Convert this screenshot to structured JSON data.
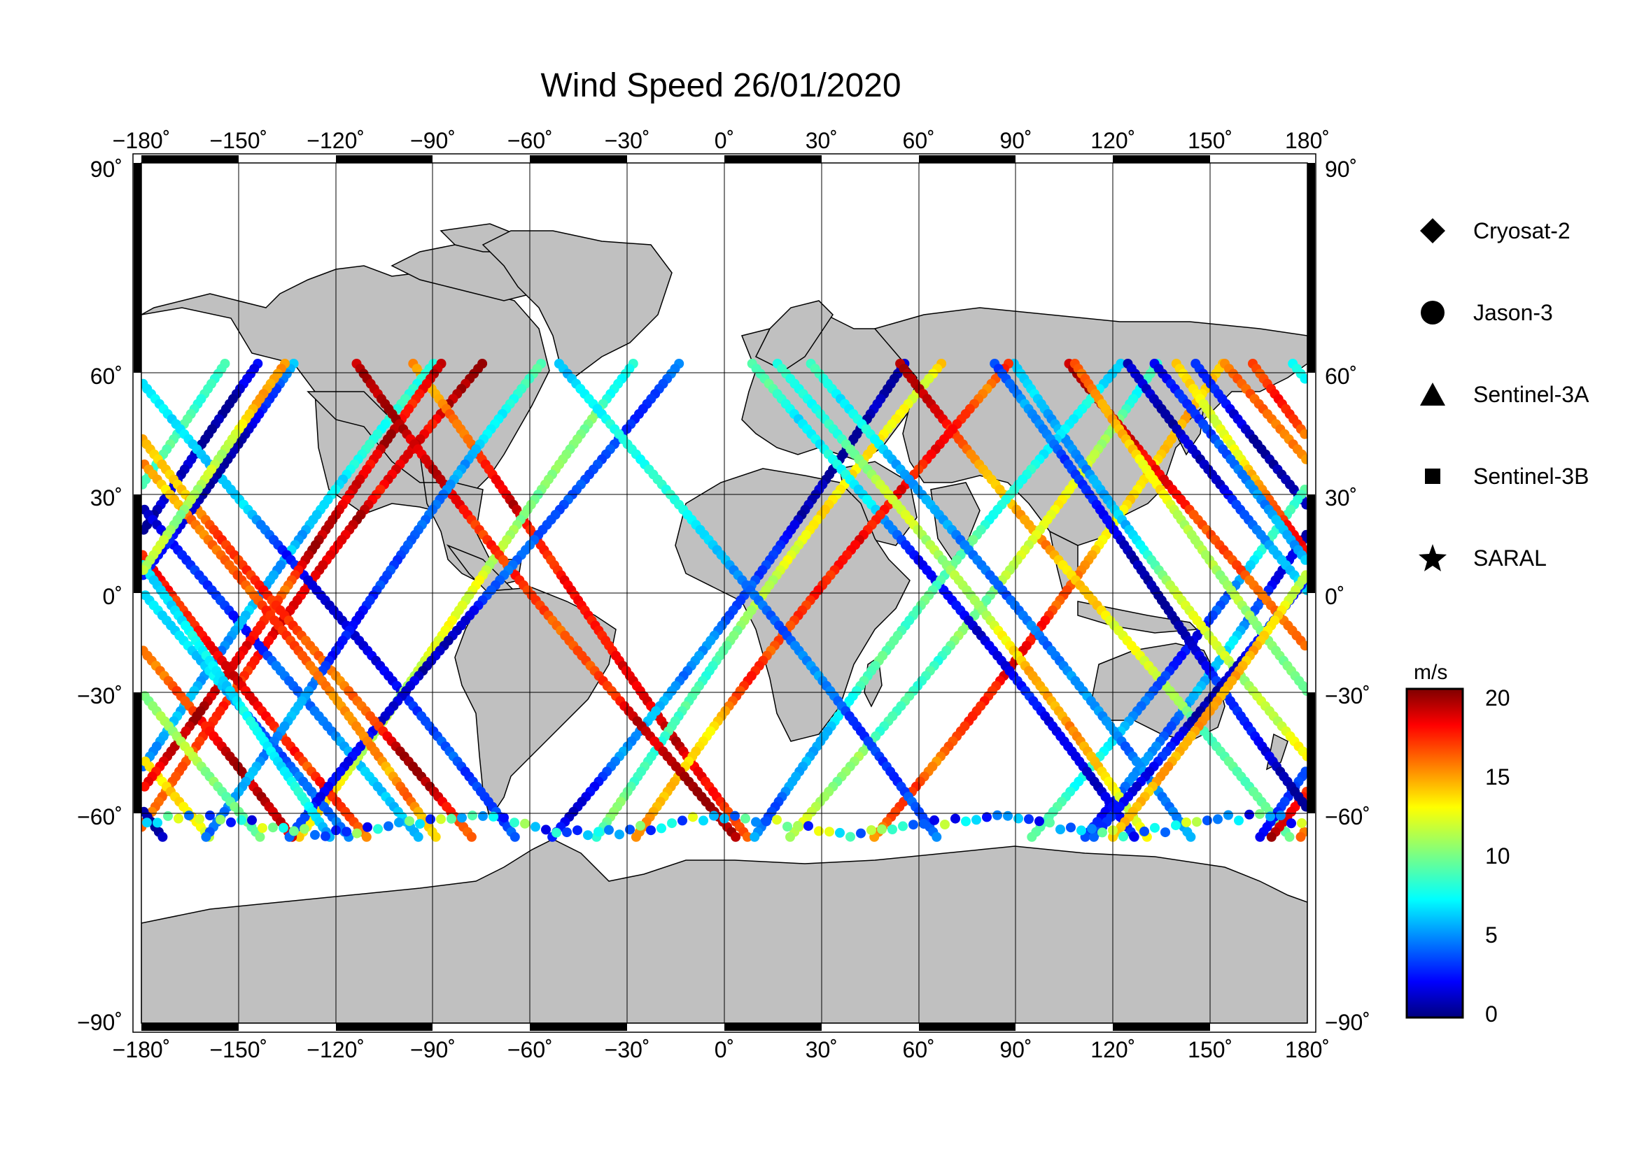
{
  "title": "Wind Speed 26/01/2020",
  "map": {
    "lon_range": [
      -180,
      180
    ],
    "lat_range": [
      -90,
      90
    ],
    "lon_ticks": [
      "−180˚",
      "−150˚",
      "−120˚",
      "−90˚",
      "−60˚",
      "−30˚",
      "0˚",
      "30˚",
      "60˚",
      "90˚",
      "120˚",
      "150˚",
      "180˚"
    ],
    "lat_ticks_left": [
      "90˚",
      "60˚",
      "30˚",
      "0˚",
      "−30˚",
      "−60˚",
      "−90˚"
    ],
    "lat_ticks_right": [
      "90˚",
      "60˚",
      "30˚",
      "0˚",
      "−30˚",
      "−60˚",
      "−90˚"
    ],
    "land_color": "#c0c0c0",
    "ocean_color": "#ffffff"
  },
  "legend": {
    "items": [
      {
        "label": "Cryosat-2",
        "symbol": "diamond-icon"
      },
      {
        "label": "Jason-3",
        "symbol": "circle-icon"
      },
      {
        "label": "Sentinel-3A",
        "symbol": "triangle-icon"
      },
      {
        "label": "Sentinel-3B",
        "symbol": "square-icon"
      },
      {
        "label": "SARAL",
        "symbol": "star-icon"
      }
    ]
  },
  "colorbar": {
    "unit": "m/s",
    "ticks": [
      "20",
      "15",
      "10",
      "5",
      "0"
    ],
    "range": [
      0,
      20
    ],
    "colormap": "jet"
  }
}
